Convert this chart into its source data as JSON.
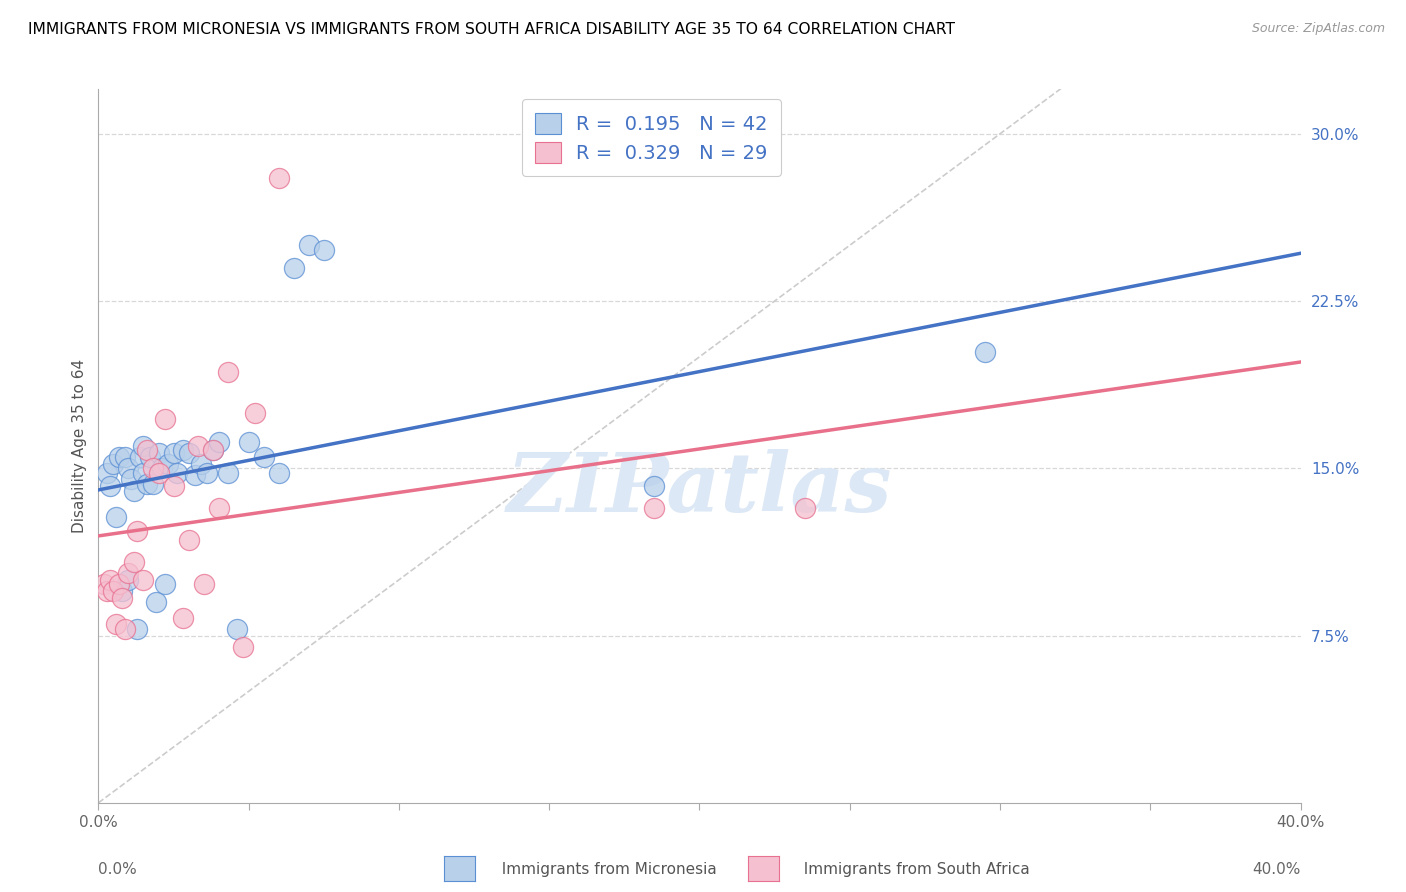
{
  "title": "IMMIGRANTS FROM MICRONESIA VS IMMIGRANTS FROM SOUTH AFRICA DISABILITY AGE 35 TO 64 CORRELATION CHART",
  "source": "Source: ZipAtlas.com",
  "ylabel": "Disability Age 35 to 64",
  "xlim": [
    0.0,
    0.4
  ],
  "ylim": [
    0.0,
    0.32
  ],
  "xtick_positions": [
    0.0,
    0.05,
    0.1,
    0.15,
    0.2,
    0.25,
    0.3,
    0.35,
    0.4
  ],
  "xtick_labels": [
    "0.0%",
    "",
    "",
    "",
    "",
    "",
    "",
    "",
    "40.0%"
  ],
  "yticks_right": [
    0.075,
    0.15,
    0.225,
    0.3
  ],
  "ytick_labels_right": [
    "7.5%",
    "15.0%",
    "22.5%",
    "30.0%"
  ],
  "R_blue": 0.195,
  "N_blue": 42,
  "R_pink": 0.329,
  "N_pink": 29,
  "blue_fill": "#b8d0ea",
  "pink_fill": "#f5c0d0",
  "blue_edge": "#5b8fd4",
  "pink_edge": "#e87090",
  "blue_line": "#4472c4",
  "pink_line": "#e8708a",
  "diagonal_color": "#cccccc",
  "grid_color": "#d8d8d8",
  "legend_label_blue": "Immigrants from Micronesia",
  "legend_label_pink": "Immigrants from South Africa",
  "watermark": "ZIPatlas",
  "blue_x": [
    0.003,
    0.004,
    0.005,
    0.006,
    0.007,
    0.008,
    0.009,
    0.01,
    0.01,
    0.011,
    0.012,
    0.013,
    0.014,
    0.015,
    0.015,
    0.016,
    0.017,
    0.018,
    0.019,
    0.02,
    0.021,
    0.022,
    0.023,
    0.025,
    0.026,
    0.028,
    0.03,
    0.032,
    0.034,
    0.036,
    0.038,
    0.04,
    0.043,
    0.046,
    0.05,
    0.055,
    0.06,
    0.065,
    0.07,
    0.075,
    0.185,
    0.295
  ],
  "blue_y": [
    0.148,
    0.142,
    0.152,
    0.128,
    0.155,
    0.095,
    0.155,
    0.15,
    0.1,
    0.145,
    0.14,
    0.078,
    0.155,
    0.148,
    0.16,
    0.143,
    0.155,
    0.143,
    0.09,
    0.157,
    0.15,
    0.098,
    0.152,
    0.157,
    0.148,
    0.158,
    0.157,
    0.147,
    0.152,
    0.148,
    0.158,
    0.162,
    0.148,
    0.078,
    0.162,
    0.155,
    0.148,
    0.24,
    0.25,
    0.248,
    0.142,
    0.202
  ],
  "pink_x": [
    0.002,
    0.003,
    0.004,
    0.005,
    0.006,
    0.007,
    0.008,
    0.009,
    0.01,
    0.012,
    0.013,
    0.015,
    0.016,
    0.018,
    0.02,
    0.022,
    0.025,
    0.028,
    0.03,
    0.033,
    0.035,
    0.038,
    0.04,
    0.043,
    0.048,
    0.052,
    0.06,
    0.185,
    0.235
  ],
  "pink_y": [
    0.098,
    0.095,
    0.1,
    0.095,
    0.08,
    0.098,
    0.092,
    0.078,
    0.103,
    0.108,
    0.122,
    0.1,
    0.158,
    0.15,
    0.148,
    0.172,
    0.142,
    0.083,
    0.118,
    0.16,
    0.098,
    0.158,
    0.132,
    0.193,
    0.07,
    0.175,
    0.28,
    0.132,
    0.132
  ]
}
